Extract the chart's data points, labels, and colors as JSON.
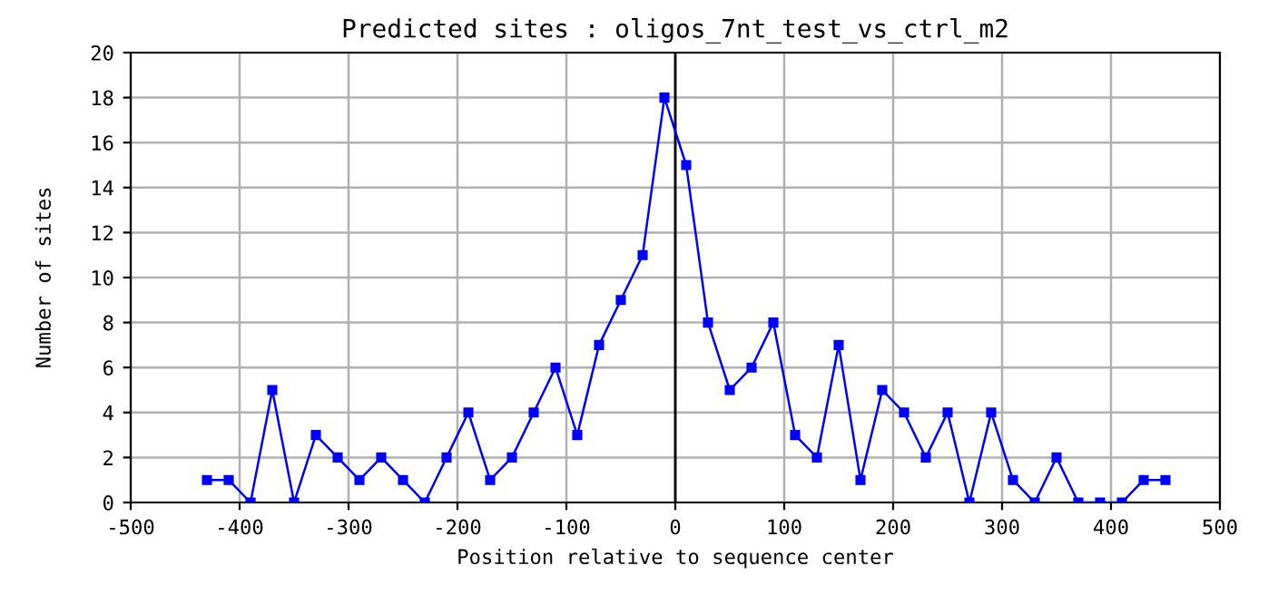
{
  "chart_data": {
    "type": "line",
    "title": "Predicted sites : oligos_7nt_test_vs_ctrl_m2",
    "xlabel": "Position relative to sequence center",
    "ylabel": "Number of sites",
    "x": [
      -430,
      -410,
      -390,
      -370,
      -350,
      -330,
      -310,
      -290,
      -270,
      -250,
      -230,
      -210,
      -190,
      -170,
      -150,
      -130,
      -110,
      -90,
      -70,
      -50,
      -30,
      -10,
      10,
      30,
      50,
      70,
      90,
      110,
      130,
      150,
      170,
      190,
      210,
      230,
      250,
      270,
      290,
      310,
      330,
      350,
      370,
      390,
      410,
      430,
      450
    ],
    "series": [
      {
        "color": "#0000ff",
        "values": [
          1,
          1,
          0,
          5,
          0,
          3,
          2,
          1,
          2,
          1,
          0,
          2,
          4,
          1,
          2,
          4,
          6,
          3,
          7,
          9,
          11,
          18,
          15,
          8,
          5,
          6,
          8,
          3,
          2,
          7,
          1,
          5,
          4,
          2,
          4,
          0,
          4,
          1,
          0,
          2,
          0,
          0,
          0,
          1,
          1
        ]
      }
    ],
    "xlim": [
      -500,
      500
    ],
    "xticks": [
      -500,
      -400,
      -300,
      -200,
      -100,
      0,
      100,
      200,
      300,
      400,
      500
    ],
    "ylim": [
      0,
      20
    ],
    "yticks": [
      0,
      2,
      4,
      6,
      8,
      10,
      12,
      14,
      16,
      18,
      20
    ],
    "ref_lines": [
      {
        "axis": "x",
        "value": 0,
        "color": "#000000"
      }
    ],
    "grid": true,
    "marker": "square",
    "line_style": "solid",
    "legend": false
  }
}
